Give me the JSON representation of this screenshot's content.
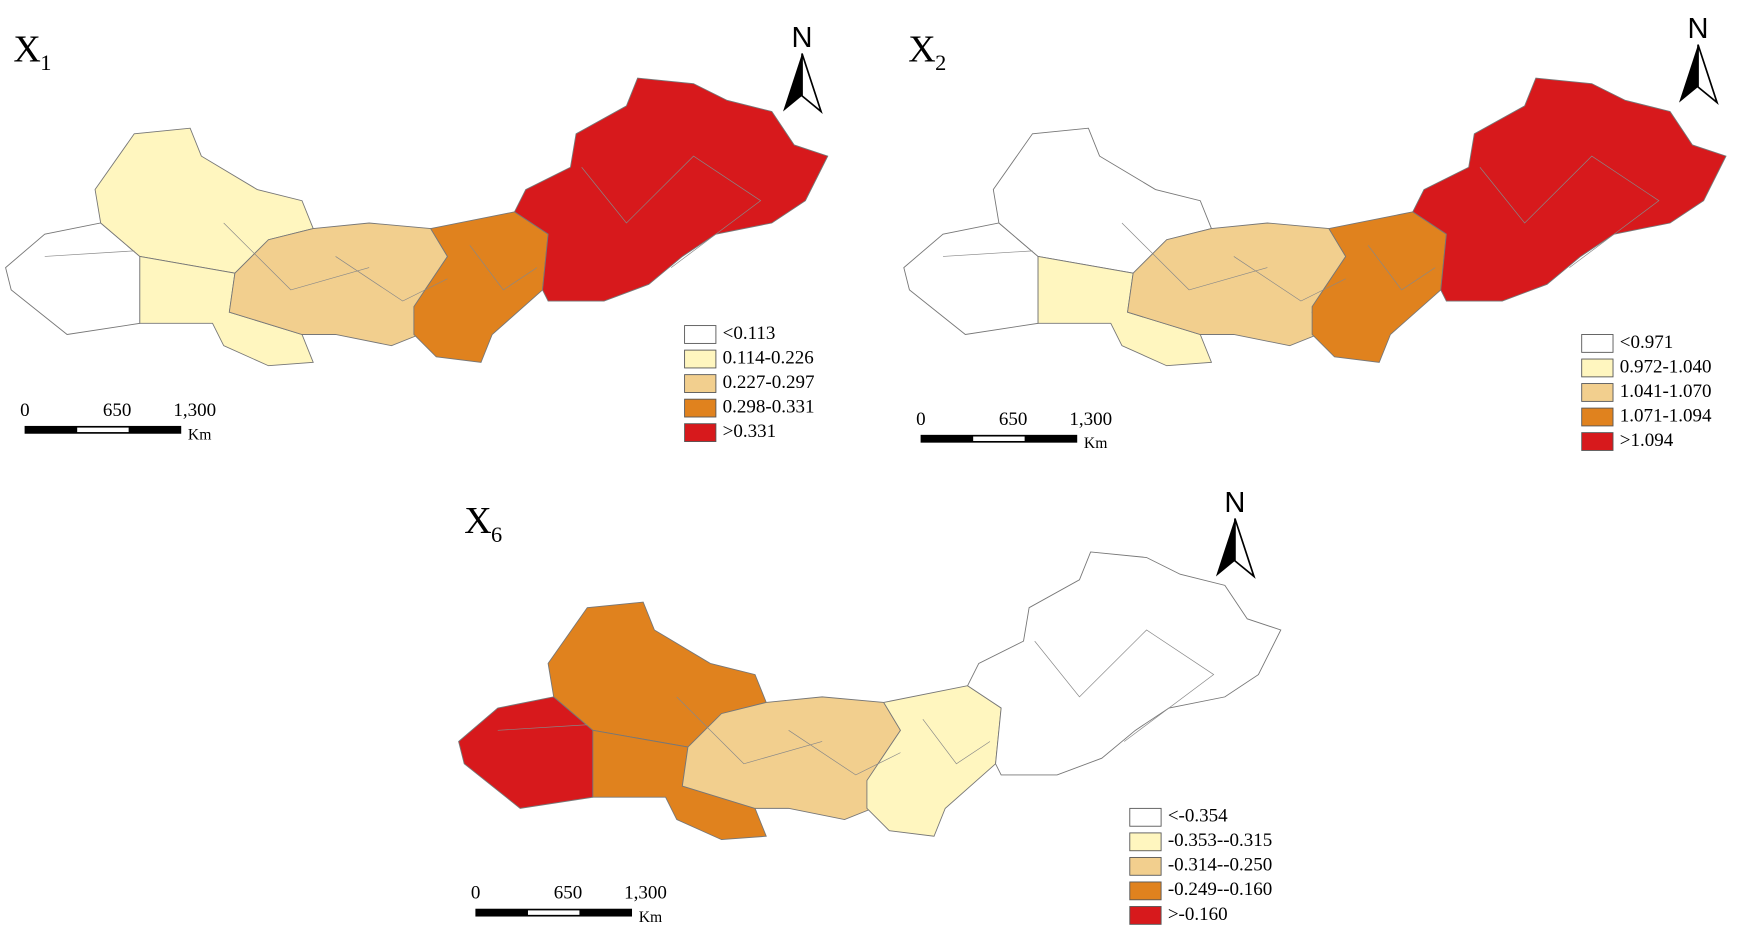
{
  "panels": [
    {
      "title": {
        "text": "X",
        "subscript": "1"
      },
      "north": "N",
      "legend": [
        {
          "label": "<0.113",
          "color": "#ffffff"
        },
        {
          "label": "0.114-0.226",
          "color": "#fff6bf"
        },
        {
          "label": "0.227-0.297",
          "color": "#f2cf8e"
        },
        {
          "label": "0.298-0.331",
          "color": "#e0821e"
        },
        {
          "label": ">0.331",
          "color": "#d7191c"
        }
      ],
      "scale_bar": {
        "ticks": [
          "0",
          "650",
          "1,300"
        ],
        "unit": "Km"
      }
    },
    {
      "title": {
        "text": "X",
        "subscript": "2"
      },
      "north": "N",
      "legend": [
        {
          "label": "<0.971",
          "color": "#ffffff"
        },
        {
          "label": "0.972-1.040",
          "color": "#fff6bf"
        },
        {
          "label": "1.041-1.070",
          "color": "#f2cf8e"
        },
        {
          "label": "1.071-1.094",
          "color": "#e0821e"
        },
        {
          "label": ">1.094",
          "color": "#d7191c"
        }
      ],
      "scale_bar": {
        "ticks": [
          "0",
          "650",
          "1,300"
        ],
        "unit": "Km"
      }
    },
    {
      "title": {
        "text": "X",
        "subscript": "6"
      },
      "north": "N",
      "legend": [
        {
          "label": "<-0.354",
          "color": "#ffffff"
        },
        {
          "label": "-0.353--0.315",
          "color": "#fff6bf"
        },
        {
          "label": "-0.314--0.250",
          "color": "#f2cf8e"
        },
        {
          "label": "-0.249--0.160",
          "color": "#e0821e"
        },
        {
          "label": ">-0.160",
          "color": "#d7191c"
        }
      ],
      "scale_bar": {
        "ticks": [
          "0",
          "650",
          "1,300"
        ],
        "unit": "Km"
      }
    }
  ]
}
